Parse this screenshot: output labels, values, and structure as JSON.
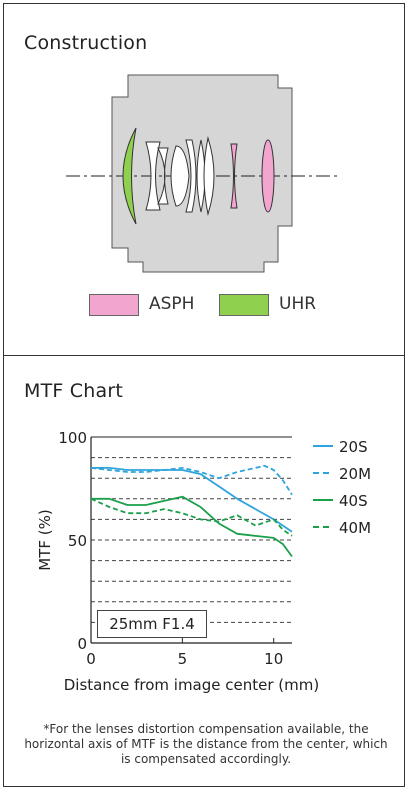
{
  "construction": {
    "title": "Construction",
    "legend": [
      {
        "label": "ASPH",
        "color": "#f2a6cf"
      },
      {
        "label": "UHR",
        "color": "#8fd14f"
      }
    ]
  },
  "mtf": {
    "title": "MTF Chart",
    "box_label": "25mm F1.4",
    "note": "*For the lenses distortion compensation available, the horizontal axis of MTF is the distance from the center, which is compensated accordingly."
  },
  "colors": {
    "blue": "#2fa4dc",
    "green": "#1aa04a",
    "housing": "#d6d6d6"
  },
  "chart_data": {
    "type": "line",
    "xlabel": "Distance from image center (mm)",
    "ylabel": "MTF (%)",
    "xlim": [
      0,
      11
    ],
    "ylim": [
      0,
      100
    ],
    "x_ticks": [
      0,
      5,
      10
    ],
    "y_ticks": [
      0,
      50,
      100
    ],
    "grid": "dashed horizontal every 10",
    "legend_position": "right",
    "series": [
      {
        "name": "20S",
        "style": "solid",
        "color": "#2fa4dc",
        "x": [
          0,
          1,
          2,
          3,
          4,
          5,
          6,
          7,
          8,
          9,
          10,
          11
        ],
        "y": [
          85,
          85,
          84,
          84,
          84,
          84,
          82,
          76,
          70,
          65,
          60,
          54
        ]
      },
      {
        "name": "20M",
        "style": "dashed",
        "color": "#2fa4dc",
        "x": [
          0,
          1,
          2,
          3,
          4,
          5,
          6,
          7,
          8,
          9,
          9.5,
          10,
          10.5,
          11
        ],
        "y": [
          85,
          84,
          83,
          83,
          84,
          85,
          83,
          80,
          83,
          85,
          86,
          84,
          79,
          72
        ]
      },
      {
        "name": "40S",
        "style": "solid",
        "color": "#1aa04a",
        "x": [
          0,
          1,
          2,
          3,
          4,
          5,
          6,
          7,
          8,
          9,
          10,
          10.5,
          11
        ],
        "y": [
          70,
          70,
          67,
          67,
          69,
          71,
          66,
          58,
          53,
          52,
          51,
          48,
          42
        ]
      },
      {
        "name": "40M",
        "style": "dashed",
        "color": "#1aa04a",
        "x": [
          0,
          1,
          2,
          3,
          4,
          5,
          6,
          7,
          8,
          9,
          10,
          10.5,
          11
        ],
        "y": [
          70,
          66,
          63,
          63,
          65,
          63,
          60,
          59,
          62,
          57,
          60,
          55,
          52
        ]
      }
    ]
  }
}
